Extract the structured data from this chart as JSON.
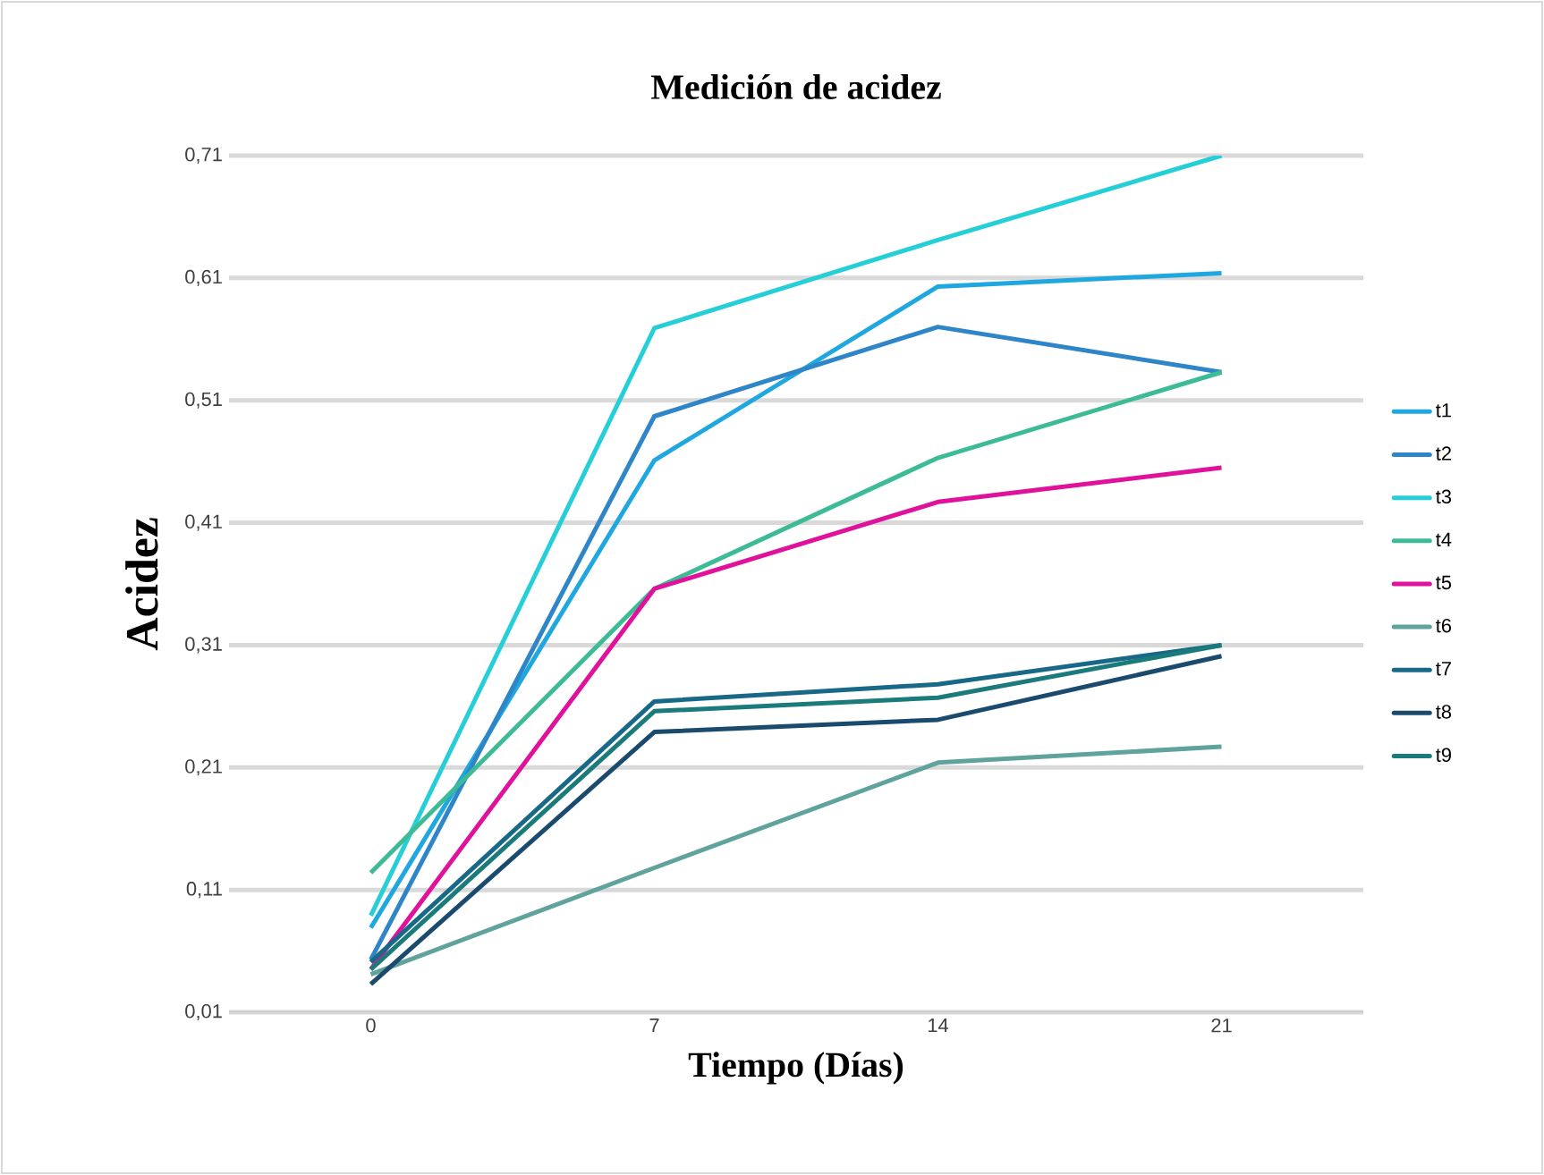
{
  "chart_data": {
    "type": "line",
    "title": "Medición de acidez",
    "xlabel": "Tiempo (Días)",
    "ylabel": "Acidez",
    "categories": [
      "0",
      "7",
      "14",
      "21"
    ],
    "ylim": [
      0.01,
      0.71
    ],
    "yticks": [
      {
        "value": 0.01,
        "label": "0,01"
      },
      {
        "value": 0.11,
        "label": "0,11"
      },
      {
        "value": 0.21,
        "label": "0,21"
      },
      {
        "value": 0.31,
        "label": "0,31"
      },
      {
        "value": 0.41,
        "label": "0,41"
      },
      {
        "value": 0.51,
        "label": "0,51"
      },
      {
        "value": 0.61,
        "label": "0,61"
      },
      {
        "value": 0.71,
        "label": "0,71"
      }
    ],
    "grid": "y",
    "legend": "right",
    "marker": "none",
    "line_style": "solid",
    "series": [
      {
        "name": "t1",
        "color": "#1fa8e0",
        "values": [
          0.079,
          0.461,
          0.603,
          0.614
        ]
      },
      {
        "name": "t2",
        "color": "#2e86c8",
        "values": [
          0.053,
          0.497,
          0.57,
          0.533
        ]
      },
      {
        "name": "t3",
        "color": "#26cfd8",
        "values": [
          0.089,
          0.569,
          0.641,
          0.71
        ]
      },
      {
        "name": "t4",
        "color": "#3dbb96",
        "values": [
          0.124,
          0.356,
          0.463,
          0.533
        ]
      },
      {
        "name": "t5",
        "color": "#e0119a",
        "values": [
          0.045,
          0.356,
          0.427,
          0.455
        ]
      },
      {
        "name": "t6",
        "color": "#5fa39c",
        "values": [
          0.041,
          0.128,
          0.214,
          0.227
        ]
      },
      {
        "name": "t7",
        "color": "#176987",
        "values": [
          0.051,
          0.264,
          0.278,
          0.31
        ]
      },
      {
        "name": "t8",
        "color": "#1a4b6e",
        "values": [
          0.033,
          0.239,
          0.249,
          0.301
        ]
      },
      {
        "name": "t9",
        "color": "#1b7b7b",
        "values": [
          0.045,
          0.256,
          0.267,
          0.31
        ]
      }
    ]
  }
}
